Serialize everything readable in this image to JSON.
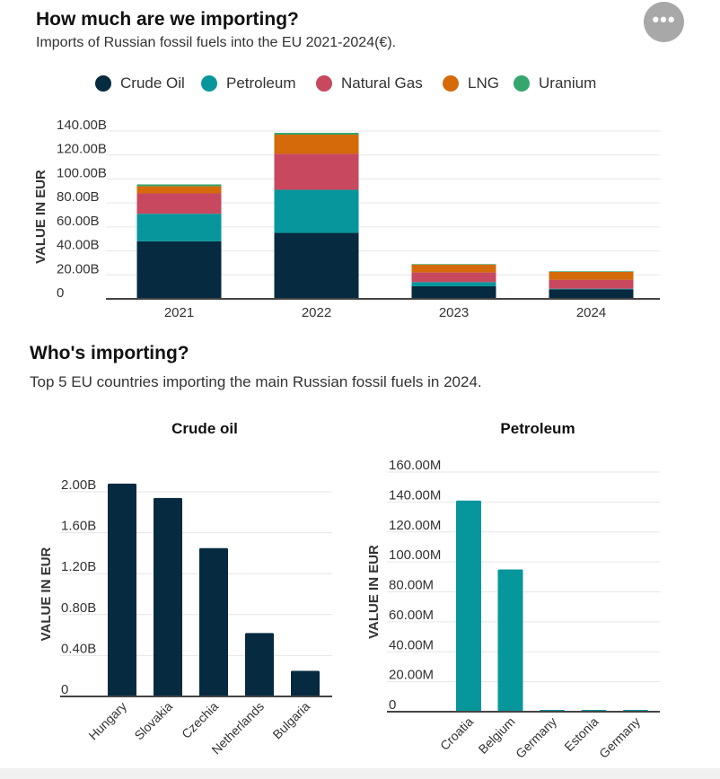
{
  "header": {
    "title": "How much are we importing?",
    "subtitle": "Imports of Russian fossil fuels into the EU 2021-2024(€).",
    "more_icon": "more-horizontal-icon",
    "more_label": "•••"
  },
  "section2": {
    "title": "Who's importing?",
    "subtitle": "Top 5 EU countries importing the main Russian fossil fuels in 2024."
  },
  "colors": {
    "crude_oil": "#062a40",
    "petroleum": "#07969c",
    "natural_gas": "#c7485f",
    "lng": "#d46a0a",
    "uranium": "#35a66d"
  },
  "chart_data": [
    {
      "type": "bar",
      "stacked": true,
      "title": "How much are we importing?",
      "xlabel": "",
      "ylabel": "VALUE IN EUR",
      "categories": [
        "2021",
        "2022",
        "2023",
        "2024"
      ],
      "ylim": [
        0,
        140
      ],
      "yticks": [
        0,
        20,
        40,
        60,
        80,
        100,
        120,
        140
      ],
      "ytick_labels": [
        "0",
        "20.00B",
        "40.00B",
        "60.00B",
        "80.00B",
        "100.00B",
        "120.00B",
        "140.00B"
      ],
      "legend_position": "top",
      "series": [
        {
          "name": "Crude Oil",
          "color": "#062a40",
          "values": [
            48,
            55,
            10.5,
            8
          ]
        },
        {
          "name": "Petroleum",
          "color": "#07969c",
          "values": [
            23,
            36,
            3.5,
            0.5
          ]
        },
        {
          "name": "Natural Gas",
          "color": "#c7485f",
          "values": [
            17,
            30,
            8,
            7.5
          ]
        },
        {
          "name": "LNG",
          "color": "#d46a0a",
          "values": [
            6,
            16,
            6.5,
            6.5
          ]
        },
        {
          "name": "Uranium",
          "color": "#35a66d",
          "values": [
            1.5,
            1.5,
            0.5,
            0.5
          ]
        }
      ]
    },
    {
      "type": "bar",
      "title": "Crude oil",
      "xlabel": "",
      "ylabel": "VALUE IN EUR",
      "categories": [
        "Hungary",
        "Slovakia",
        "Czechia",
        "Netherlands",
        "Bulgaria"
      ],
      "values": [
        2.08,
        1.94,
        1.45,
        0.62,
        0.25
      ],
      "unit": "B EUR",
      "color": "#062a40",
      "ylim": [
        0,
        2.0
      ],
      "yticks": [
        0,
        0.4,
        0.8,
        1.2,
        1.6,
        2.0
      ],
      "ytick_labels": [
        "0",
        "0.40B",
        "0.80B",
        "1.20B",
        "1.60B",
        "2.00B"
      ]
    },
    {
      "type": "bar",
      "title": "Petroleum",
      "xlabel": "",
      "ylabel": "VALUE IN EUR",
      "categories": [
        "Croatia",
        "Belgium",
        "Germany",
        "Estonia",
        "Germany"
      ],
      "values": [
        141,
        95,
        1,
        1,
        1
      ],
      "unit": "M EUR",
      "color": "#07969c",
      "ylim": [
        0,
        160
      ],
      "yticks": [
        0,
        20,
        40,
        60,
        80,
        100,
        120,
        140,
        160
      ],
      "ytick_labels": [
        "0",
        "20.00M",
        "40.00M",
        "60.00M",
        "80.00M",
        "100.00M",
        "120.00M",
        "140.00M",
        "160.00M"
      ]
    }
  ]
}
